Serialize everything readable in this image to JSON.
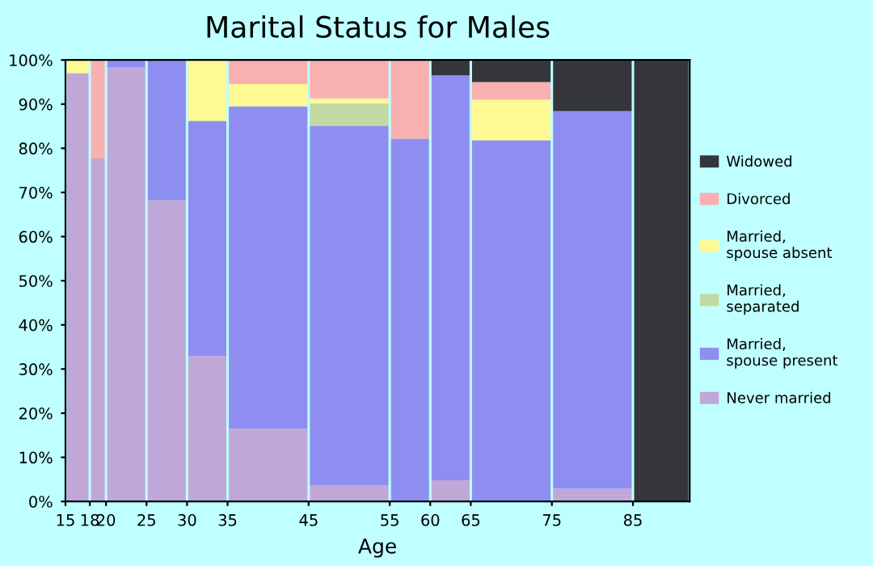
{
  "chart_data": {
    "type": "bar",
    "stacked": true,
    "title": "Marital Status for Males",
    "xlabel": "Age",
    "x": [
      16.5,
      19,
      22.5,
      27.5,
      32.5,
      40,
      50,
      57.5,
      62.5,
      70,
      80,
      88.5
    ],
    "xlim": [
      15,
      92
    ],
    "xticks": [
      15,
      18,
      20,
      25,
      30,
      35,
      45,
      55,
      60,
      65,
      75,
      85
    ],
    "ylim": [
      0,
      100
    ],
    "yticks": [
      {
        "value": 0,
        "label": "0%"
      },
      {
        "value": 10,
        "label": "10%"
      },
      {
        "value": 20,
        "label": "20%"
      },
      {
        "value": 30,
        "label": "30%"
      },
      {
        "value": 40,
        "label": "40%"
      },
      {
        "value": 50,
        "label": "50%"
      },
      {
        "value": 60,
        "label": "60%"
      },
      {
        "value": 70,
        "label": "70%"
      },
      {
        "value": 80,
        "label": "80%"
      },
      {
        "value": 90,
        "label": "90%"
      },
      {
        "value": 100,
        "label": "100%"
      }
    ],
    "grid": false,
    "legend": "right",
    "series": [
      {
        "name": "Never married",
        "color": "#bfa8d8",
        "values": [
          97,
          77.7,
          98.3,
          68.2,
          33,
          16.5,
          3.7,
          0,
          4.8,
          0,
          2.9,
          0
        ]
      },
      {
        "name": "Married,\nspouse present",
        "color": "#8e8ef0",
        "values": [
          0,
          0,
          1.7,
          31.8,
          53.2,
          73,
          81.4,
          82.2,
          91.7,
          81.8,
          85.5,
          0
        ]
      },
      {
        "name": "Married,\nseparated",
        "color": "#c2d9a3",
        "values": [
          0,
          0,
          0,
          0,
          0,
          0,
          5.1,
          0,
          0,
          0,
          0,
          0
        ]
      },
      {
        "name": "Married,\nspouse absent",
        "color": "#fef993",
        "values": [
          3,
          0,
          0,
          0,
          13.8,
          5.1,
          1.1,
          0,
          0,
          9.2,
          0,
          0
        ]
      },
      {
        "name": "Divorced",
        "color": "#f8b0b0",
        "values": [
          0,
          22.3,
          0,
          0,
          0,
          5.4,
          8.7,
          17.8,
          0,
          4,
          0,
          0
        ]
      },
      {
        "name": "Widowed",
        "color": "#35363c",
        "values": [
          0,
          0,
          0,
          0,
          0,
          0,
          0,
          0,
          3.5,
          5,
          11.6,
          100
        ]
      }
    ]
  }
}
